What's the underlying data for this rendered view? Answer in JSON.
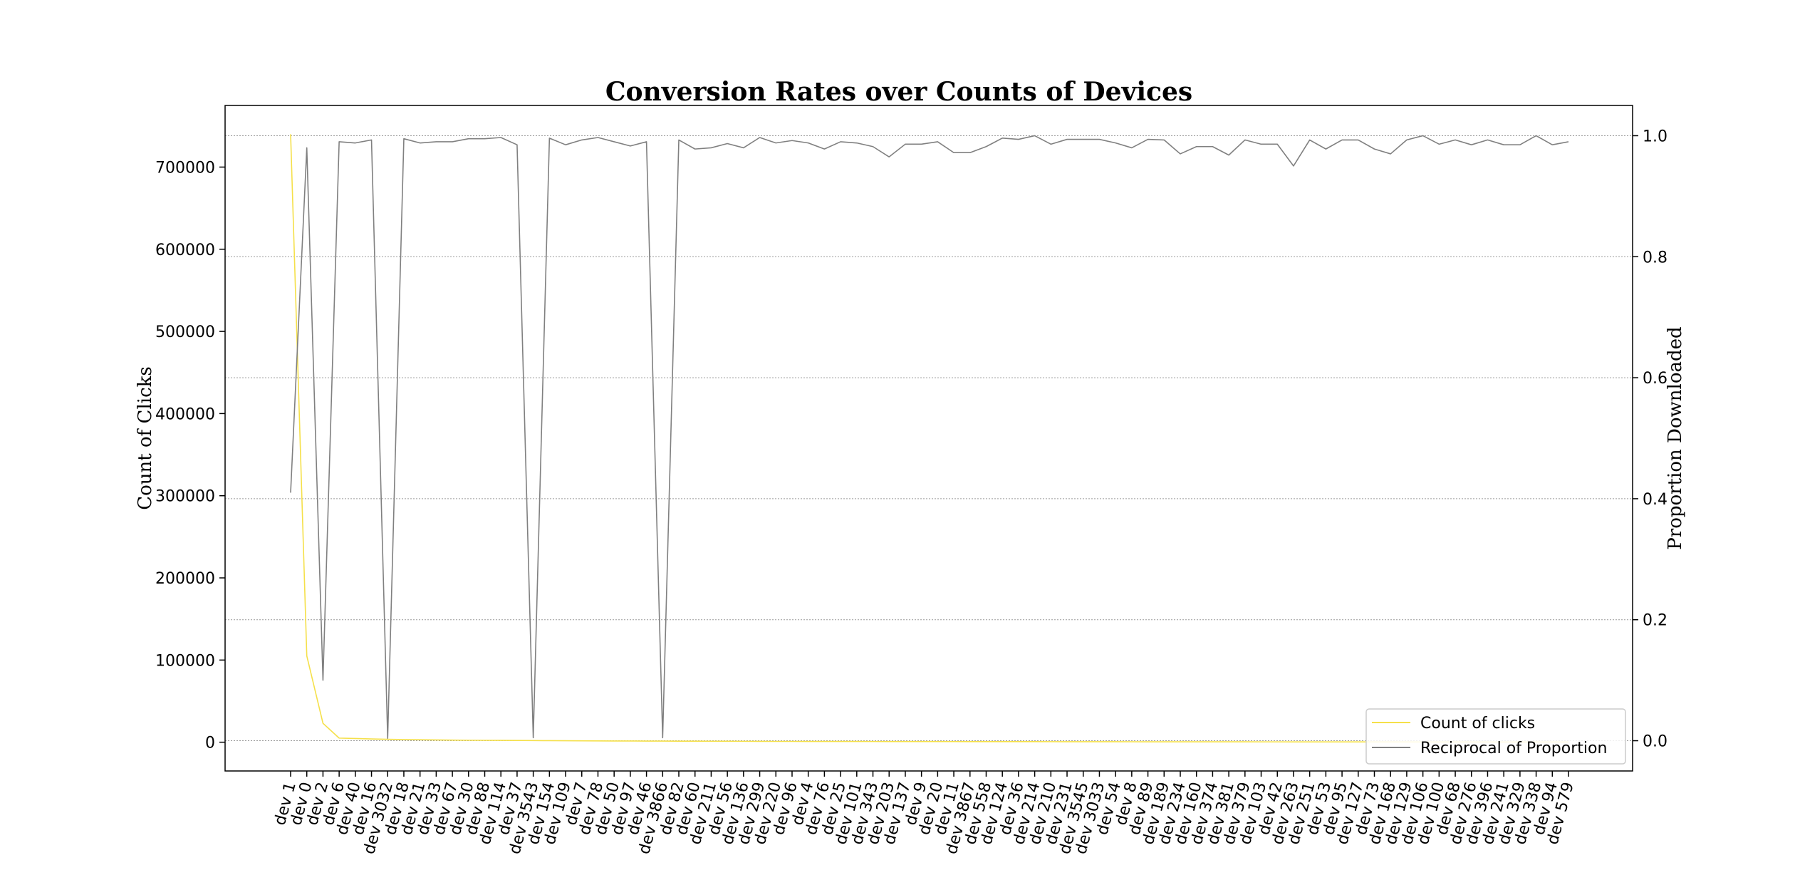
{
  "chart_data": {
    "type": "line",
    "title": "Conversion Rates over Counts of Devices",
    "ylabel": "Count of Clicks",
    "y2label": "Proportion Downloaded",
    "ylim": [
      -35000,
      775000
    ],
    "y2lim": [
      -0.05,
      1.05
    ],
    "yticks": [
      0,
      100000,
      200000,
      300000,
      400000,
      500000,
      600000,
      700000
    ],
    "y2ticks": [
      0.0,
      0.2,
      0.4,
      0.6,
      0.8,
      1.0
    ],
    "y2tick_labels": [
      "0.0",
      "0.2",
      "0.4",
      "0.6",
      "0.8",
      "1.0"
    ],
    "grid": "horizontal on secondary axis",
    "legend_position": "lower-right",
    "categories": [
      "dev 1",
      "dev 0",
      "dev 2",
      "dev 6",
      "dev 40",
      "dev 16",
      "dev 3032",
      "dev 18",
      "dev 21",
      "dev 33",
      "dev 67",
      "dev 30",
      "dev 88",
      "dev 114",
      "dev 37",
      "dev 3543",
      "dev 154",
      "dev 109",
      "dev 7",
      "dev 78",
      "dev 50",
      "dev 97",
      "dev 46",
      "dev 3866",
      "dev 82",
      "dev 60",
      "dev 211",
      "dev 56",
      "dev 136",
      "dev 299",
      "dev 220",
      "dev 96",
      "dev 4",
      "dev 76",
      "dev 25",
      "dev 101",
      "dev 343",
      "dev 203",
      "dev 137",
      "dev 9",
      "dev 20",
      "dev 11",
      "dev 3867",
      "dev 558",
      "dev 124",
      "dev 36",
      "dev 214",
      "dev 210",
      "dev 231",
      "dev 3545",
      "dev 3033",
      "dev 54",
      "dev 8",
      "dev 89",
      "dev 189",
      "dev 234",
      "dev 160",
      "dev 374",
      "dev 381",
      "dev 379",
      "dev 103",
      "dev 42",
      "dev 263",
      "dev 251",
      "dev 53",
      "dev 95",
      "dev 127",
      "dev 73",
      "dev 168",
      "dev 129",
      "dev 106",
      "dev 100",
      "dev 68",
      "dev 276",
      "dev 396",
      "dev 241",
      "dev 329",
      "dev 338",
      "dev 94",
      "dev 579"
    ],
    "series": [
      {
        "name": "Count of clicks",
        "axis": "left",
        "color": "#f5e04a",
        "values": [
          740000,
          105000,
          23000,
          5000,
          4500,
          4000,
          3500,
          3200,
          3000,
          2800,
          2600,
          2400,
          2300,
          2200,
          2100,
          2000,
          1900,
          1800,
          1700,
          1600,
          1500,
          1450,
          1400,
          1350,
          1300,
          1250,
          1200,
          1150,
          1100,
          1050,
          1000,
          980,
          960,
          940,
          920,
          900,
          880,
          860,
          840,
          820,
          800,
          780,
          760,
          740,
          720,
          700,
          680,
          660,
          640,
          620,
          600,
          580,
          560,
          540,
          520,
          500,
          490,
          480,
          470,
          460,
          450,
          440,
          430,
          420,
          410,
          400,
          390,
          380,
          370,
          360,
          350,
          340,
          330,
          320,
          310,
          300,
          290,
          280,
          270,
          260
        ]
      },
      {
        "name": "Reciprocal of Proportion",
        "axis": "right",
        "color": "#808080",
        "values": [
          0.41,
          0.98,
          0.1,
          0.99,
          0.988,
          0.993,
          0.004,
          0.995,
          0.988,
          0.99,
          0.99,
          0.995,
          0.995,
          0.997,
          0.985,
          0.005,
          0.996,
          0.985,
          0.993,
          0.997,
          0.99,
          0.983,
          0.99,
          0.005,
          0.993,
          0.978,
          0.98,
          0.987,
          0.98,
          0.997,
          0.988,
          0.992,
          0.988,
          0.978,
          0.99,
          0.988,
          0.982,
          0.965,
          0.986,
          0.986,
          0.99,
          0.972,
          0.972,
          0.982,
          0.996,
          0.994,
          1.0,
          0.986,
          0.994,
          0.994,
          0.994,
          0.988,
          0.98,
          0.994,
          0.993,
          0.97,
          0.982,
          0.982,
          0.968,
          0.993,
          0.986,
          0.986,
          0.95,
          0.993,
          0.978,
          0.993,
          0.993,
          0.978,
          0.97,
          0.993,
          1.0,
          0.986,
          0.993,
          0.985,
          0.993,
          0.985,
          0.985,
          1.0,
          0.985,
          0.99
        ]
      }
    ]
  }
}
